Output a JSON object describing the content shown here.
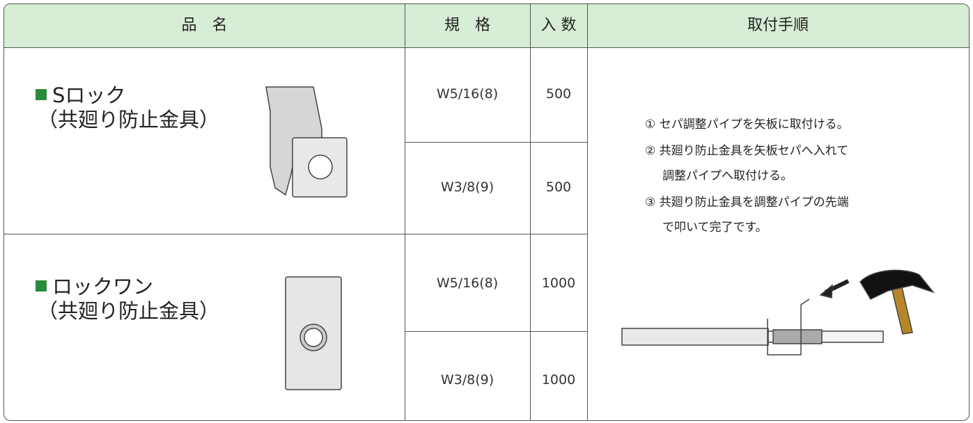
{
  "table": {
    "header": [
      "品　名",
      "規　格",
      "入 数",
      "取付手順"
    ],
    "products": [
      {
        "name": "Sロック",
        "subname": "（共廻り防止金具）",
        "variants": [
          {
            "spec": "W5/16(8)",
            "qty": 500
          },
          {
            "spec": "W3/8(9)",
            "qty": 500
          }
        ]
      },
      {
        "name": "ロックワン",
        "subname": "（共廻り防止金具）",
        "variants": [
          {
            "spec": "W5/16(8)",
            "qty": 1000
          },
          {
            "spec": "W3/8(9)",
            "qty": 1000
          }
        ]
      }
    ],
    "instructions": [
      [
        "① セパ調整パイプを矢板に取付ける。"
      ],
      [
        "② 共廻り防止金具を矢板セパへ入れて",
        "調整パイプへ取付ける。"
      ],
      [
        "③ 共廻り防止金具を調整パイプの先端",
        "で叩いて完了です。"
      ]
    ]
  }
}
